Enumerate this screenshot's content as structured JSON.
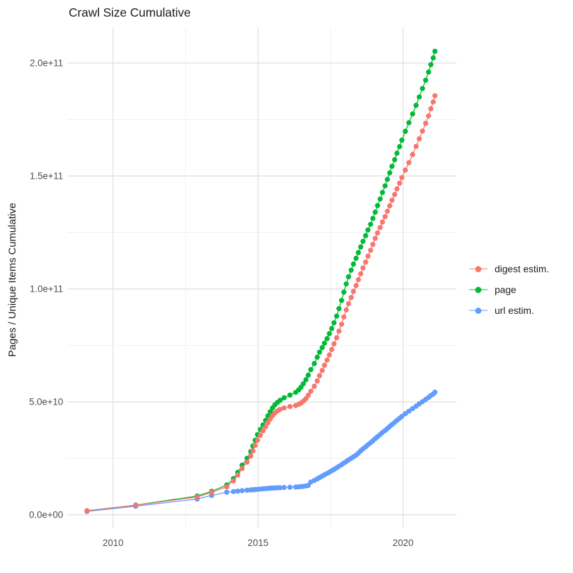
{
  "title": "Crawl Size Cumulative",
  "colors": {
    "background": "#ffffff",
    "grid_major": "#e4e4e4",
    "grid_minor": "#f1f1f1",
    "tick_label": "#4d4d4d",
    "text": "#1c1c1c",
    "digest": "#F8766D",
    "page": "#00BA38",
    "url": "#619CFF"
  },
  "chart_data": {
    "type": "scatter",
    "title": "Crawl Size Cumulative",
    "xlabel": "",
    "ylabel": "Pages / Unique Items Cumulative",
    "xlim": [
      2008.4,
      2021.85
    ],
    "ylim": [
      0,
      215000000000.0
    ],
    "grid": true,
    "legend_position": "right",
    "xticks": {
      "major": [
        2010,
        2015,
        2020
      ],
      "minor": [
        2012.5,
        2017.5
      ],
      "labels": [
        "2010",
        "2015",
        "2020"
      ]
    },
    "yticks": {
      "major": [
        0,
        50000000000.0,
        100000000000.0,
        150000000000.0,
        200000000000.0
      ],
      "minor": [
        25000000000.0,
        75000000000.0,
        125000000000.0,
        175000000000.0
      ],
      "labels": [
        "0.0e+00",
        "5.0e+10",
        "1.0e+11",
        "1.5e+11",
        "2.0e+11"
      ]
    },
    "series": [
      {
        "name": "digest estim.",
        "color": "#F8766D",
        "points": [
          [
            2009.1,
            1800000000.0
          ],
          [
            2010.78,
            4200000000.0
          ],
          [
            2012.9,
            7900000000.0
          ],
          [
            2013.4,
            9900000000.0
          ],
          [
            2013.92,
            12400000000.0
          ],
          [
            2014.15,
            15000000000.0
          ],
          [
            2014.3,
            17600000000.0
          ],
          [
            2014.45,
            20500000000.0
          ],
          [
            2014.62,
            23300000000.0
          ],
          [
            2014.75,
            26000000000.0
          ],
          [
            2014.82,
            28300000000.0
          ],
          [
            2014.9,
            30700000000.0
          ],
          [
            2014.98,
            33000000000.0
          ],
          [
            2015.08,
            35200000000.0
          ],
          [
            2015.17,
            37200000000.0
          ],
          [
            2015.26,
            39000000000.0
          ],
          [
            2015.34,
            40800000000.0
          ],
          [
            2015.42,
            42400000000.0
          ],
          [
            2015.5,
            43900000000.0
          ],
          [
            2015.58,
            45100000000.0
          ],
          [
            2015.67,
            46000000000.0
          ],
          [
            2015.76,
            46700000000.0
          ],
          [
            2015.9,
            47300000000.0
          ],
          [
            2016.1,
            47900000000.0
          ],
          [
            2016.3,
            48400000000.0
          ],
          [
            2016.4,
            48900000000.0
          ],
          [
            2016.48,
            49500000000.0
          ],
          [
            2016.56,
            50300000000.0
          ],
          [
            2016.65,
            51400000000.0
          ],
          [
            2016.73,
            52900000000.0
          ],
          [
            2016.82,
            54700000000.0
          ],
          [
            2016.94,
            56900000000.0
          ],
          [
            2017.04,
            59300000000.0
          ],
          [
            2017.12,
            61600000000.0
          ],
          [
            2017.21,
            63900000000.0
          ],
          [
            2017.29,
            66200000000.0
          ],
          [
            2017.38,
            68500000000.0
          ],
          [
            2017.46,
            70800000000.0
          ],
          [
            2017.54,
            73200000000.0
          ],
          [
            2017.62,
            75700000000.0
          ],
          [
            2017.71,
            78400000000.0
          ],
          [
            2017.79,
            81300000000.0
          ],
          [
            2017.88,
            84400000000.0
          ],
          [
            2017.96,
            87600000000.0
          ],
          [
            2018.04,
            90700000000.0
          ],
          [
            2018.12,
            93500000000.0
          ],
          [
            2018.21,
            96200000000.0
          ],
          [
            2018.29,
            98900000000.0
          ],
          [
            2018.38,
            101500000000.0
          ],
          [
            2018.46,
            104100000000.0
          ],
          [
            2018.54,
            106700000000.0
          ],
          [
            2018.62,
            109300000000.0
          ],
          [
            2018.71,
            111900000000.0
          ],
          [
            2018.79,
            114500000000.0
          ],
          [
            2018.88,
            117100000000.0
          ],
          [
            2018.96,
            119700000000.0
          ],
          [
            2019.04,
            122400000000.0
          ],
          [
            2019.12,
            124800000000.0
          ],
          [
            2019.21,
            127200000000.0
          ],
          [
            2019.29,
            129600000000.0
          ],
          [
            2019.38,
            132000000000.0
          ],
          [
            2019.46,
            134400000000.0
          ],
          [
            2019.54,
            136800000000.0
          ],
          [
            2019.62,
            139300000000.0
          ],
          [
            2019.71,
            141800000000.0
          ],
          [
            2019.79,
            144300000000.0
          ],
          [
            2019.88,
            146800000000.0
          ],
          [
            2019.96,
            149300000000.0
          ],
          [
            2020.08,
            152600000000.0
          ],
          [
            2020.2,
            155900000000.0
          ],
          [
            2020.33,
            159500000000.0
          ],
          [
            2020.45,
            163100000000.0
          ],
          [
            2020.56,
            166500000000.0
          ],
          [
            2020.67,
            169900000000.0
          ],
          [
            2020.78,
            173300000000.0
          ],
          [
            2020.88,
            176600000000.0
          ],
          [
            2020.96,
            179800000000.0
          ],
          [
            2021.04,
            182800000000.0
          ],
          [
            2021.1,
            185500000000.0
          ]
        ]
      },
      {
        "name": "page",
        "color": "#00BA38",
        "points": [
          [
            2009.1,
            1800000000.0
          ],
          [
            2010.78,
            4300000000.0
          ],
          [
            2012.9,
            8300000000.0
          ],
          [
            2013.4,
            10400000000.0
          ],
          [
            2013.92,
            13200000000.0
          ],
          [
            2014.15,
            16000000000.0
          ],
          [
            2014.3,
            18800000000.0
          ],
          [
            2014.45,
            22000000000.0
          ],
          [
            2014.62,
            25000000000.0
          ],
          [
            2014.75,
            28000000000.0
          ],
          [
            2014.82,
            30500000000.0
          ],
          [
            2014.9,
            33000000000.0
          ],
          [
            2014.98,
            35500000000.0
          ],
          [
            2015.08,
            37800000000.0
          ],
          [
            2015.17,
            39800000000.0
          ],
          [
            2015.26,
            41800000000.0
          ],
          [
            2015.34,
            43800000000.0
          ],
          [
            2015.42,
            45600000000.0
          ],
          [
            2015.5,
            47300000000.0
          ],
          [
            2015.58,
            48700000000.0
          ],
          [
            2015.67,
            49800000000.0
          ],
          [
            2015.76,
            50700000000.0
          ],
          [
            2015.9,
            51800000000.0
          ],
          [
            2016.1,
            53000000000.0
          ],
          [
            2016.3,
            54200000000.0
          ],
          [
            2016.4,
            55300000000.0
          ],
          [
            2016.48,
            56500000000.0
          ],
          [
            2016.56,
            58000000000.0
          ],
          [
            2016.65,
            59800000000.0
          ],
          [
            2016.73,
            61800000000.0
          ],
          [
            2016.82,
            64300000000.0
          ],
          [
            2016.94,
            67000000000.0
          ],
          [
            2017.04,
            69800000000.0
          ],
          [
            2017.12,
            72000000000.0
          ],
          [
            2017.21,
            74000000000.0
          ],
          [
            2017.29,
            76000000000.0
          ],
          [
            2017.38,
            78000000000.0
          ],
          [
            2017.46,
            80200000000.0
          ],
          [
            2017.54,
            82500000000.0
          ],
          [
            2017.62,
            85000000000.0
          ],
          [
            2017.71,
            88000000000.0
          ],
          [
            2017.79,
            91300000000.0
          ],
          [
            2017.88,
            94900000000.0
          ],
          [
            2017.96,
            98600000000.0
          ],
          [
            2018.04,
            102200000000.0
          ],
          [
            2018.12,
            105400000000.0
          ],
          [
            2018.21,
            108300000000.0
          ],
          [
            2018.29,
            111000000000.0
          ],
          [
            2018.38,
            113600000000.0
          ],
          [
            2018.46,
            116100000000.0
          ],
          [
            2018.54,
            118600000000.0
          ],
          [
            2018.62,
            121100000000.0
          ],
          [
            2018.71,
            123600000000.0
          ],
          [
            2018.79,
            126100000000.0
          ],
          [
            2018.88,
            128600000000.0
          ],
          [
            2018.96,
            131200000000.0
          ],
          [
            2019.04,
            134000000000.0
          ],
          [
            2019.12,
            136900000000.0
          ],
          [
            2019.21,
            139800000000.0
          ],
          [
            2019.29,
            142700000000.0
          ],
          [
            2019.38,
            145600000000.0
          ],
          [
            2019.46,
            148500000000.0
          ],
          [
            2019.54,
            151400000000.0
          ],
          [
            2019.62,
            154300000000.0
          ],
          [
            2019.71,
            157200000000.0
          ],
          [
            2019.79,
            160100000000.0
          ],
          [
            2019.88,
            163000000000.0
          ],
          [
            2019.96,
            165900000000.0
          ],
          [
            2020.08,
            169800000000.0
          ],
          [
            2020.2,
            173600000000.0
          ],
          [
            2020.33,
            177500000000.0
          ],
          [
            2020.45,
            181300000000.0
          ],
          [
            2020.56,
            185000000000.0
          ],
          [
            2020.67,
            188700000000.0
          ],
          [
            2020.78,
            192400000000.0
          ],
          [
            2020.88,
            196000000000.0
          ],
          [
            2020.96,
            199300000000.0
          ],
          [
            2021.04,
            202300000000.0
          ],
          [
            2021.1,
            205200000000.0
          ]
        ]
      },
      {
        "name": "url estim.",
        "color": "#619CFF",
        "points": [
          [
            2009.1,
            1500000000.0
          ],
          [
            2010.78,
            3800000000.0
          ],
          [
            2012.9,
            7000000000.0
          ],
          [
            2013.4,
            8600000000.0
          ],
          [
            2013.92,
            10000000000.0
          ],
          [
            2014.15,
            10300000000.0
          ],
          [
            2014.3,
            10500000000.0
          ],
          [
            2014.45,
            10700000000.0
          ],
          [
            2014.62,
            10900000000.0
          ],
          [
            2014.75,
            11000000000.0
          ],
          [
            2014.82,
            11100000000.0
          ],
          [
            2014.9,
            11200000000.0
          ],
          [
            2014.98,
            11300000000.0
          ],
          [
            2015.08,
            11400000000.0
          ],
          [
            2015.17,
            11500000000.0
          ],
          [
            2015.26,
            11600000000.0
          ],
          [
            2015.34,
            11700000000.0
          ],
          [
            2015.42,
            11800000000.0
          ],
          [
            2015.5,
            11850000000.0
          ],
          [
            2015.58,
            11900000000.0
          ],
          [
            2015.67,
            11950000000.0
          ],
          [
            2015.76,
            12000000000.0
          ],
          [
            2015.9,
            12100000000.0
          ],
          [
            2016.1,
            12200000000.0
          ],
          [
            2016.3,
            12300000000.0
          ],
          [
            2016.4,
            12400000000.0
          ],
          [
            2016.48,
            12500000000.0
          ],
          [
            2016.56,
            12600000000.0
          ],
          [
            2016.65,
            12800000000.0
          ],
          [
            2016.73,
            13000000000.0
          ],
          [
            2016.82,
            14500000000.0
          ],
          [
            2016.94,
            15200000000.0
          ],
          [
            2017.04,
            15900000000.0
          ],
          [
            2017.12,
            16500000000.0
          ],
          [
            2017.21,
            17100000000.0
          ],
          [
            2017.29,
            17700000000.0
          ],
          [
            2017.38,
            18300000000.0
          ],
          [
            2017.46,
            18900000000.0
          ],
          [
            2017.54,
            19500000000.0
          ],
          [
            2017.62,
            20100000000.0
          ],
          [
            2017.71,
            20800000000.0
          ],
          [
            2017.79,
            21500000000.0
          ],
          [
            2017.88,
            22200000000.0
          ],
          [
            2017.96,
            22900000000.0
          ],
          [
            2018.04,
            23600000000.0
          ],
          [
            2018.12,
            24300000000.0
          ],
          [
            2018.21,
            25000000000.0
          ],
          [
            2018.29,
            25700000000.0
          ],
          [
            2018.38,
            26400000000.0
          ],
          [
            2018.46,
            27300000000.0
          ],
          [
            2018.54,
            28300000000.0
          ],
          [
            2018.62,
            29200000000.0
          ],
          [
            2018.71,
            30100000000.0
          ],
          [
            2018.79,
            31000000000.0
          ],
          [
            2018.88,
            31900000000.0
          ],
          [
            2018.96,
            32800000000.0
          ],
          [
            2019.04,
            33700000000.0
          ],
          [
            2019.12,
            34600000000.0
          ],
          [
            2019.21,
            35500000000.0
          ],
          [
            2019.29,
            36400000000.0
          ],
          [
            2019.38,
            37300000000.0
          ],
          [
            2019.46,
            38200000000.0
          ],
          [
            2019.54,
            39100000000.0
          ],
          [
            2019.62,
            40000000000.0
          ],
          [
            2019.71,
            40900000000.0
          ],
          [
            2019.79,
            41800000000.0
          ],
          [
            2019.88,
            42700000000.0
          ],
          [
            2019.96,
            43600000000.0
          ],
          [
            2020.08,
            44800000000.0
          ],
          [
            2020.2,
            45900000000.0
          ],
          [
            2020.33,
            47000000000.0
          ],
          [
            2020.45,
            48100000000.0
          ],
          [
            2020.56,
            49100000000.0
          ],
          [
            2020.67,
            50100000000.0
          ],
          [
            2020.78,
            51100000000.0
          ],
          [
            2020.88,
            52000000000.0
          ],
          [
            2020.96,
            52800000000.0
          ],
          [
            2021.04,
            53500000000.0
          ],
          [
            2021.1,
            54300000000.0
          ]
        ]
      }
    ]
  },
  "legend": {
    "items": [
      "digest estim.",
      "page",
      "url estim."
    ]
  }
}
